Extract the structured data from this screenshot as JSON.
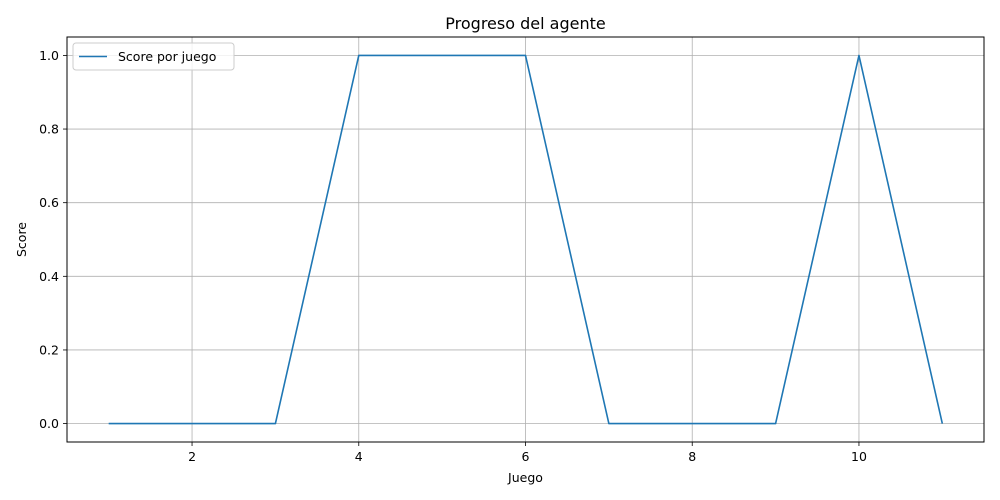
{
  "chart_data": {
    "type": "line",
    "title": "Progreso del agente",
    "xlabel": "Juego",
    "ylabel": "Score",
    "xlim": [
      0.5,
      11.5
    ],
    "ylim": [
      -0.05,
      1.05
    ],
    "xticks": [
      2,
      4,
      6,
      8,
      10
    ],
    "yticks": [
      0.0,
      0.2,
      0.4,
      0.6,
      0.8,
      1.0
    ],
    "xtick_labels": [
      "2",
      "4",
      "6",
      "8",
      "10"
    ],
    "ytick_labels": [
      "0.0",
      "0.2",
      "0.4",
      "0.6",
      "0.8",
      "1.0"
    ],
    "grid": true,
    "legend_position": "top-left",
    "series": [
      {
        "name": "Score por juego",
        "color": "#1f77b4",
        "x": [
          1,
          2,
          3,
          4,
          5,
          6,
          7,
          8,
          9,
          10,
          11
        ],
        "y": [
          0,
          0,
          0,
          1,
          1,
          1,
          0,
          0,
          0,
          1,
          0
        ]
      }
    ]
  }
}
